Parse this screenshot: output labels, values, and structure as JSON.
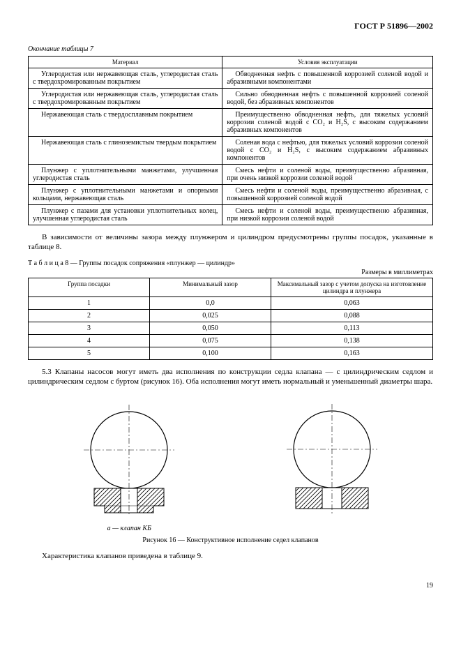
{
  "doc_code": "ГОСТ Р 51896—2002",
  "table7_end": "Окончание таблицы 7",
  "table7": {
    "header_material": "Материал",
    "header_conditions": "Условия эксплуатации",
    "rows": [
      {
        "m": "Углеродистая или нержавеющая сталь, углеродистая сталь с твердохромированным покрытием",
        "c": "Обводненная нефть с повышенной коррозией соленой водой и абразивными компонентами"
      },
      {
        "m": "Углеродистая или нержавеющая сталь, углеродистая сталь с твердохромированным покрытием",
        "c": "Сильно обводненная нефть с повышенной коррозией соленой водой, без абразивных компонентов"
      },
      {
        "m": "Нержавеющая сталь с твердосплавным покрытием",
        "c": "Преимущественно обводненная нефть, для тяжелых условий коррозии соленой водой с CO₂ и H₂S, с высоким содержанием абразивных компонентов"
      },
      {
        "m": "Нержавеющая сталь с глиноземистым твердым покрытием",
        "c": "Соленая вода с нефтью, для тяжелых условий коррозии соленой водой с CO₂ и H₂S, с высоким содержанием абразивных компонентов"
      },
      {
        "m": "Плунжер с уплотнительными манжетами, улучшенная углеродистая сталь",
        "c": "Смесь нефти и соленой воды, преимущественно абразивная, при очень низкой коррозии соленой водой"
      },
      {
        "m": "Плунжер с уплотнительными манжетами и опорными кольцами, нержавеющая сталь",
        "c": "Смесь нефти и соленой воды, преимущественно абразивная, с повышенной коррозией соленой водой"
      },
      {
        "m": "Плунжер с пазами для установки уплотнительных колец, улучшенная углеродистая сталь",
        "c": "Смесь нефти и соленой воды, преимущественно абразивная, при низкой коррозии соленой водой"
      }
    ]
  },
  "para1": "В зависимости от величины зазора между плунжером и цилиндром предусмотрены группы посадок, указанные в таблице 8.",
  "table8_caption": "Т а б л и ц а  8 — Группы посадок сопряжения «плунжер — цилиндр»",
  "table8_units": "Размеры в миллиметрах",
  "table8": {
    "header_group": "Группа посадки",
    "header_min": "Минимальный зазор",
    "header_max": "Максимальный зазор с учетом допуска на изготовление цилиндра и плунжера",
    "rows": [
      {
        "g": "1",
        "min": "0,0",
        "max": "0,063"
      },
      {
        "g": "2",
        "min": "0,025",
        "max": "0,088"
      },
      {
        "g": "3",
        "min": "0,050",
        "max": "0,113"
      },
      {
        "g": "4",
        "min": "0,075",
        "max": "0,138"
      },
      {
        "g": "5",
        "min": "0,100",
        "max": "0,163"
      }
    ]
  },
  "para2": "5.3 Клапаны насосов могут иметь два исполнения по конструкции седла клапана — с цилиндрическим седлом и цилиндрическим седлом с буртом (рисунок 16). Оба исполнения могут иметь нормальный и уменьшенный диаметры шара.",
  "fig_a_label": "а — клапан КБ",
  "fig_caption": "Рисунок 16 — Конструктивное исполнение седел клапанов",
  "para3": "Характеристика клапанов приведена в таблице 9.",
  "page_num": "19",
  "svg": {
    "circle_stroke": "#000",
    "hatch": "#000",
    "dash": "4,2,1,2"
  }
}
